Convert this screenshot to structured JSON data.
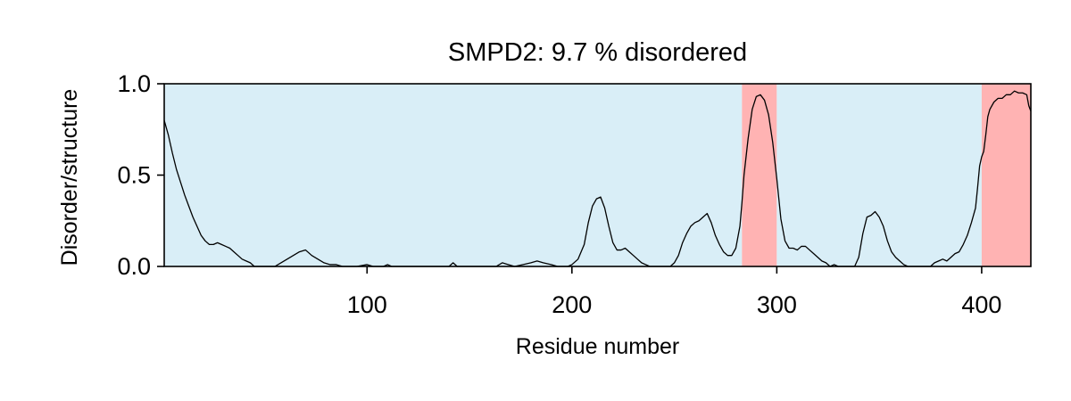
{
  "chart_data": {
    "type": "line",
    "title": "SMPD2: 9.7 % disordered",
    "xlabel": "Residue number",
    "ylabel": "Disorder/structure",
    "xlim": [
      1,
      424
    ],
    "ylim": [
      0,
      1
    ],
    "xticks": [
      100,
      200,
      300,
      400
    ],
    "xtick_labels": [
      "100",
      "200",
      "300",
      "400"
    ],
    "yticks": [
      0,
      0.5,
      1
    ],
    "ytick_labels": [
      "0.0",
      "0.5",
      "1.0"
    ],
    "grid": false,
    "legend": "none",
    "colors": {
      "structured_region": "#d9eef7",
      "disordered_region": "#ffb3b3",
      "line": "#000000"
    },
    "regions": [
      {
        "type": "structured",
        "start": 1,
        "end": 283
      },
      {
        "type": "disordered",
        "start": 283,
        "end": 300
      },
      {
        "type": "structured",
        "start": 300,
        "end": 400
      },
      {
        "type": "disordered",
        "start": 400,
        "end": 424
      }
    ],
    "series": [
      {
        "points": [
          [
            1,
            0.8
          ],
          [
            3,
            0.72
          ],
          [
            5,
            0.62
          ],
          [
            7,
            0.53
          ],
          [
            9,
            0.46
          ],
          [
            11,
            0.39
          ],
          [
            13,
            0.33
          ],
          [
            15,
            0.27
          ],
          [
            17,
            0.22
          ],
          [
            19,
            0.17
          ],
          [
            21,
            0.14
          ],
          [
            23,
            0.12
          ],
          [
            25,
            0.12
          ],
          [
            27,
            0.13
          ],
          [
            29,
            0.12
          ],
          [
            31,
            0.11
          ],
          [
            33,
            0.1
          ],
          [
            35,
            0.08
          ],
          [
            37,
            0.06
          ],
          [
            39,
            0.04
          ],
          [
            41,
            0.03
          ],
          [
            43,
            0.02
          ],
          [
            45,
            0.0
          ],
          [
            50,
            0.0
          ],
          [
            55,
            0.0
          ],
          [
            58,
            0.02
          ],
          [
            61,
            0.04
          ],
          [
            64,
            0.06
          ],
          [
            67,
            0.08
          ],
          [
            70,
            0.09
          ],
          [
            73,
            0.06
          ],
          [
            76,
            0.04
          ],
          [
            79,
            0.02
          ],
          [
            82,
            0.01
          ],
          [
            85,
            0.01
          ],
          [
            88,
            0.0
          ],
          [
            95,
            0.0
          ],
          [
            100,
            0.01
          ],
          [
            103,
            0.0
          ],
          [
            108,
            0.0
          ],
          [
            110,
            0.01
          ],
          [
            112,
            0.0
          ],
          [
            140,
            0.0
          ],
          [
            142,
            0.02
          ],
          [
            144,
            0.0
          ],
          [
            163,
            0.0
          ],
          [
            166,
            0.02
          ],
          [
            169,
            0.01
          ],
          [
            172,
            0.0
          ],
          [
            176,
            0.01
          ],
          [
            180,
            0.02
          ],
          [
            183,
            0.03
          ],
          [
            186,
            0.02
          ],
          [
            190,
            0.01
          ],
          [
            193,
            0.0
          ],
          [
            198,
            0.0
          ],
          [
            200,
            0.01
          ],
          [
            203,
            0.04
          ],
          [
            206,
            0.12
          ],
          [
            208,
            0.24
          ],
          [
            210,
            0.33
          ],
          [
            212,
            0.37
          ],
          [
            214,
            0.38
          ],
          [
            216,
            0.32
          ],
          [
            218,
            0.22
          ],
          [
            220,
            0.13
          ],
          [
            222,
            0.09
          ],
          [
            224,
            0.09
          ],
          [
            226,
            0.1
          ],
          [
            228,
            0.08
          ],
          [
            230,
            0.06
          ],
          [
            232,
            0.04
          ],
          [
            234,
            0.02
          ],
          [
            236,
            0.01
          ],
          [
            238,
            0.0
          ],
          [
            248,
            0.0
          ],
          [
            250,
            0.02
          ],
          [
            252,
            0.06
          ],
          [
            254,
            0.13
          ],
          [
            256,
            0.18
          ],
          [
            258,
            0.22
          ],
          [
            260,
            0.24
          ],
          [
            262,
            0.25
          ],
          [
            264,
            0.27
          ],
          [
            266,
            0.29
          ],
          [
            268,
            0.24
          ],
          [
            270,
            0.17
          ],
          [
            272,
            0.12
          ],
          [
            274,
            0.08
          ],
          [
            276,
            0.06
          ],
          [
            278,
            0.06
          ],
          [
            280,
            0.1
          ],
          [
            282,
            0.22
          ],
          [
            283,
            0.35
          ],
          [
            284,
            0.5
          ],
          [
            286,
            0.7
          ],
          [
            288,
            0.86
          ],
          [
            290,
            0.93
          ],
          [
            292,
            0.94
          ],
          [
            294,
            0.91
          ],
          [
            296,
            0.83
          ],
          [
            298,
            0.68
          ],
          [
            300,
            0.48
          ],
          [
            302,
            0.26
          ],
          [
            304,
            0.14
          ],
          [
            306,
            0.1
          ],
          [
            308,
            0.1
          ],
          [
            310,
            0.09
          ],
          [
            312,
            0.11
          ],
          [
            314,
            0.11
          ],
          [
            316,
            0.09
          ],
          [
            318,
            0.07
          ],
          [
            320,
            0.05
          ],
          [
            322,
            0.03
          ],
          [
            324,
            0.02
          ],
          [
            326,
            0.0
          ],
          [
            328,
            0.01
          ],
          [
            330,
            0.0
          ],
          [
            335,
            0.0
          ],
          [
            338,
            0.0
          ],
          [
            340,
            0.05
          ],
          [
            342,
            0.18
          ],
          [
            344,
            0.27
          ],
          [
            346,
            0.28
          ],
          [
            348,
            0.3
          ],
          [
            350,
            0.27
          ],
          [
            352,
            0.22
          ],
          [
            354,
            0.14
          ],
          [
            356,
            0.08
          ],
          [
            358,
            0.05
          ],
          [
            360,
            0.03
          ],
          [
            362,
            0.01
          ],
          [
            364,
            0.0
          ],
          [
            375,
            0.0
          ],
          [
            377,
            0.02
          ],
          [
            379,
            0.03
          ],
          [
            381,
            0.04
          ],
          [
            383,
            0.03
          ],
          [
            385,
            0.05
          ],
          [
            387,
            0.07
          ],
          [
            389,
            0.08
          ],
          [
            391,
            0.12
          ],
          [
            393,
            0.17
          ],
          [
            395,
            0.24
          ],
          [
            397,
            0.32
          ],
          [
            398,
            0.43
          ],
          [
            399,
            0.55
          ],
          [
            400,
            0.6
          ],
          [
            401,
            0.63
          ],
          [
            402,
            0.72
          ],
          [
            403,
            0.82
          ],
          [
            404,
            0.86
          ],
          [
            406,
            0.9
          ],
          [
            408,
            0.92
          ],
          [
            410,
            0.92
          ],
          [
            412,
            0.94
          ],
          [
            414,
            0.94
          ],
          [
            416,
            0.96
          ],
          [
            418,
            0.95
          ],
          [
            420,
            0.95
          ],
          [
            422,
            0.94
          ],
          [
            423,
            0.88
          ],
          [
            424,
            0.85
          ]
        ]
      }
    ]
  }
}
